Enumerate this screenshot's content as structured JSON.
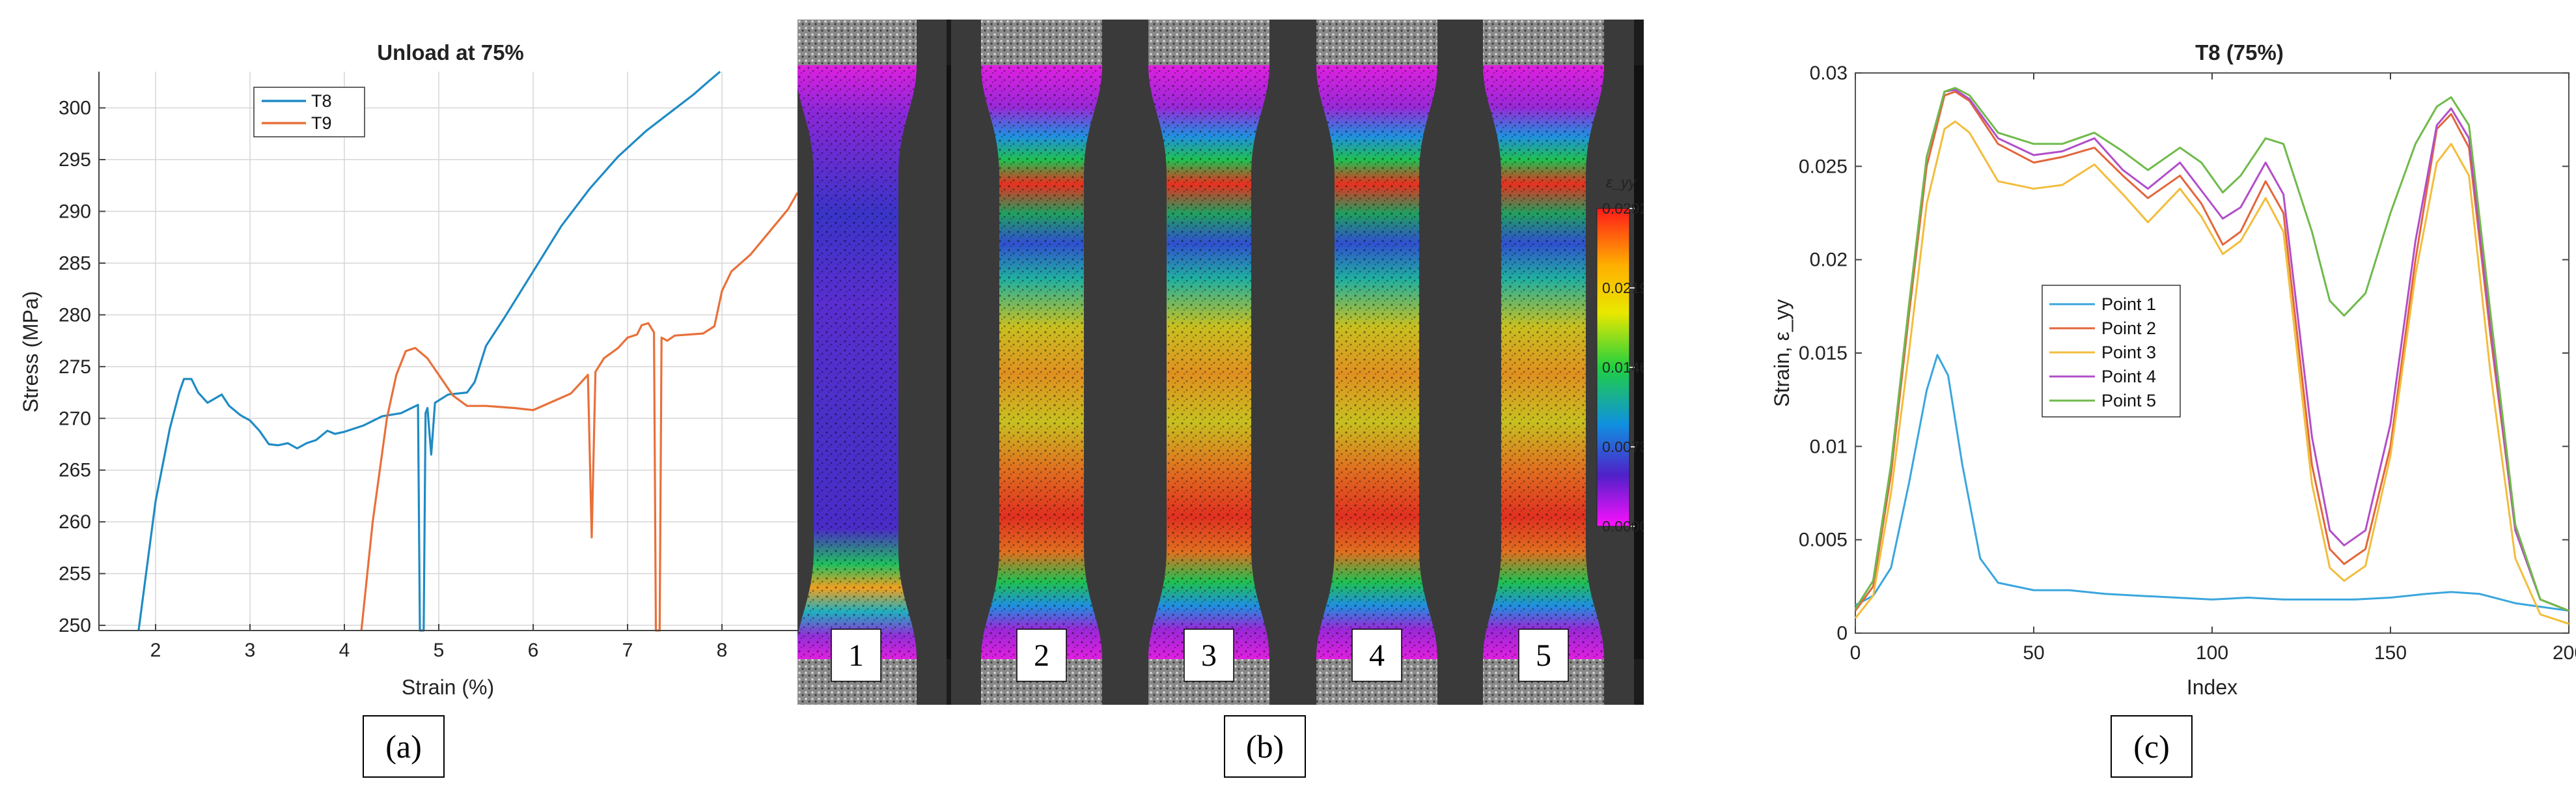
{
  "panels": {
    "a": {
      "tag": "(a)"
    },
    "b": {
      "tag": "(b)"
    },
    "c": {
      "tag": "(c)"
    }
  },
  "chart_data": [
    {
      "type": "line",
      "title": "Unload at 75%",
      "xlabel": "Strain (%)",
      "ylabel": "Stress (MPa)",
      "xlim": [
        1.4,
        8.8
      ],
      "ylim": [
        249.5,
        303.5
      ],
      "xticks": [
        2,
        3,
        4,
        5,
        6,
        7,
        8
      ],
      "yticks": [
        250,
        255,
        260,
        265,
        270,
        275,
        280,
        285,
        290,
        295,
        300
      ],
      "grid": true,
      "legend_position": "top-left",
      "series": [
        {
          "name": "T8",
          "color": "#1f8bc4",
          "points": [
            [
              1.82,
              249.5
            ],
            [
              2.0,
              262
            ],
            [
              2.15,
              269
            ],
            [
              2.25,
              272.5
            ],
            [
              2.3,
              273.8
            ],
            [
              2.38,
              273.8
            ],
            [
              2.45,
              272.5
            ],
            [
              2.55,
              271.5
            ],
            [
              2.7,
              272.3
            ],
            [
              2.78,
              271.2
            ],
            [
              2.9,
              270.3
            ],
            [
              3.0,
              269.8
            ],
            [
              3.1,
              268.8
            ],
            [
              3.2,
              267.5
            ],
            [
              3.3,
              267.4
            ],
            [
              3.4,
              267.6
            ],
            [
              3.5,
              267.1
            ],
            [
              3.6,
              267.6
            ],
            [
              3.7,
              267.9
            ],
            [
              3.82,
              268.8
            ],
            [
              3.9,
              268.5
            ],
            [
              4.0,
              268.7
            ],
            [
              4.2,
              269.3
            ],
            [
              4.4,
              270.2
            ],
            [
              4.6,
              270.5
            ],
            [
              4.78,
              271.3
            ],
            [
              4.8,
              249.5
            ],
            [
              4.84,
              249.5
            ],
            [
              4.86,
              270.5
            ],
            [
              4.88,
              271.0
            ],
            [
              4.92,
              266.5
            ],
            [
              4.96,
              271.5
            ],
            [
              5.1,
              272.3
            ],
            [
              5.3,
              272.5
            ],
            [
              5.38,
              273.5
            ],
            [
              5.5,
              277
            ],
            [
              5.7,
              279.8
            ],
            [
              6.0,
              284.2
            ],
            [
              6.3,
              288.6
            ],
            [
              6.6,
              292.2
            ],
            [
              6.9,
              295.3
            ],
            [
              7.2,
              297.8
            ],
            [
              7.5,
              299.9
            ],
            [
              7.7,
              301.3
            ],
            [
              7.85,
              302.5
            ],
            [
              7.98,
              303.5
            ]
          ]
        },
        {
          "name": "T9",
          "color": "#e8703a",
          "points": [
            [
              4.18,
              249.5
            ],
            [
              4.3,
              260
            ],
            [
              4.45,
              270
            ],
            [
              4.55,
              274.2
            ],
            [
              4.65,
              276.5
            ],
            [
              4.75,
              276.8
            ],
            [
              4.88,
              275.8
            ],
            [
              5.0,
              274.2
            ],
            [
              5.15,
              272.2
            ],
            [
              5.3,
              271.2
            ],
            [
              5.5,
              271.2
            ],
            [
              5.8,
              271.0
            ],
            [
              6.0,
              270.8
            ],
            [
              6.2,
              271.6
            ],
            [
              6.4,
              272.4
            ],
            [
              6.58,
              274.2
            ],
            [
              6.62,
              258.5
            ],
            [
              6.66,
              274.5
            ],
            [
              6.75,
              275.8
            ],
            [
              6.9,
              276.8
            ],
            [
              7.0,
              277.8
            ],
            [
              7.1,
              278.1
            ],
            [
              7.15,
              279.0
            ],
            [
              7.22,
              279.2
            ],
            [
              7.28,
              278.3
            ],
            [
              7.3,
              249.5
            ],
            [
              7.34,
              249.5
            ],
            [
              7.36,
              277.8
            ],
            [
              7.42,
              277.5
            ],
            [
              7.5,
              278.0
            ],
            [
              7.8,
              278.2
            ],
            [
              7.92,
              278.9
            ],
            [
              8.0,
              282.3
            ],
            [
              8.1,
              284.2
            ],
            [
              8.3,
              285.8
            ],
            [
              8.5,
              288.0
            ],
            [
              8.7,
              290.2
            ],
            [
              8.8,
              291.8
            ]
          ]
        }
      ]
    },
    {
      "type": "image",
      "colorbar_label": "ε_yy",
      "colorbar_ticks": [
        "0.0292",
        "0.0219",
        "0.0146",
        "0.0073",
        "0.0000"
      ],
      "specimens": [
        "1",
        "2",
        "3",
        "4",
        "5"
      ]
    },
    {
      "type": "line",
      "title": "T8 (75%)",
      "xlabel": "Index",
      "ylabel": "Strain, ε_yy",
      "xlim": [
        0,
        200
      ],
      "ylim": [
        0,
        0.03
      ],
      "xticks": [
        "0",
        "50",
        "100",
        "150",
        "200"
      ],
      "yticks": [
        "0",
        "0.005",
        "0.01",
        "0.015",
        "0.02",
        "0.025",
        "0.03"
      ],
      "grid": false,
      "legend_position": "center-left",
      "series": [
        {
          "name": "Point 1",
          "color": "#3aa6dd",
          "points": [
            [
              0,
              0.0015
            ],
            [
              5,
              0.002
            ],
            [
              10,
              0.0035
            ],
            [
              15,
              0.008
            ],
            [
              20,
              0.013
            ],
            [
              23,
              0.0149
            ],
            [
              26,
              0.0138
            ],
            [
              30,
              0.009
            ],
            [
              35,
              0.004
            ],
            [
              40,
              0.0027
            ],
            [
              50,
              0.0023
            ],
            [
              60,
              0.0023
            ],
            [
              70,
              0.0021
            ],
            [
              80,
              0.002
            ],
            [
              90,
              0.0019
            ],
            [
              100,
              0.0018
            ],
            [
              110,
              0.0019
            ],
            [
              120,
              0.0018
            ],
            [
              130,
              0.0018
            ],
            [
              140,
              0.0018
            ],
            [
              150,
              0.0019
            ],
            [
              160,
              0.0021
            ],
            [
              167,
              0.0022
            ],
            [
              175,
              0.0021
            ],
            [
              185,
              0.0016
            ],
            [
              200,
              0.0012
            ]
          ]
        },
        {
          "name": "Point 2",
          "color": "#e2663b",
          "points": [
            [
              0,
              0.0012
            ],
            [
              5,
              0.0025
            ],
            [
              10,
              0.0085
            ],
            [
              15,
              0.017
            ],
            [
              20,
              0.025
            ],
            [
              25,
              0.0288
            ],
            [
              28,
              0.029
            ],
            [
              32,
              0.0285
            ],
            [
              40,
              0.0262
            ],
            [
              50,
              0.0252
            ],
            [
              58,
              0.0255
            ],
            [
              67,
              0.026
            ],
            [
              75,
              0.0245
            ],
            [
              82,
              0.0233
            ],
            [
              91,
              0.0245
            ],
            [
              97,
              0.023
            ],
            [
              103,
              0.0208
            ],
            [
              108,
              0.0215
            ],
            [
              115,
              0.0242
            ],
            [
              120,
              0.0225
            ],
            [
              128,
              0.009
            ],
            [
              133,
              0.0045
            ],
            [
              137,
              0.0037
            ],
            [
              143,
              0.0045
            ],
            [
              150,
              0.01
            ],
            [
              157,
              0.02
            ],
            [
              163,
              0.027
            ],
            [
              167,
              0.0278
            ],
            [
              172,
              0.026
            ],
            [
              178,
              0.016
            ],
            [
              185,
              0.0055
            ],
            [
              192,
              0.0018
            ],
            [
              200,
              0.0012
            ]
          ]
        },
        {
          "name": "Point 3",
          "color": "#f2bd3b",
          "points": [
            [
              0,
              0.0008
            ],
            [
              5,
              0.002
            ],
            [
              10,
              0.0075
            ],
            [
              15,
              0.015
            ],
            [
              20,
              0.023
            ],
            [
              25,
              0.027
            ],
            [
              28,
              0.0274
            ],
            [
              32,
              0.0268
            ],
            [
              40,
              0.0242
            ],
            [
              50,
              0.0238
            ],
            [
              58,
              0.024
            ],
            [
              67,
              0.0251
            ],
            [
              75,
              0.0235
            ],
            [
              82,
              0.022
            ],
            [
              91,
              0.0238
            ],
            [
              97,
              0.0223
            ],
            [
              103,
              0.0203
            ],
            [
              108,
              0.021
            ],
            [
              115,
              0.0233
            ],
            [
              120,
              0.0215
            ],
            [
              128,
              0.008
            ],
            [
              133,
              0.0035
            ],
            [
              137,
              0.0028
            ],
            [
              143,
              0.0036
            ],
            [
              150,
              0.0095
            ],
            [
              157,
              0.0192
            ],
            [
              163,
              0.0252
            ],
            [
              167,
              0.0262
            ],
            [
              172,
              0.0245
            ],
            [
              178,
              0.014
            ],
            [
              185,
              0.004
            ],
            [
              192,
              0.001
            ],
            [
              200,
              0.0005
            ]
          ]
        },
        {
          "name": "Point 4",
          "color": "#b24ec9",
          "points": [
            [
              0,
              0.0013
            ],
            [
              5,
              0.0028
            ],
            [
              10,
              0.009
            ],
            [
              15,
              0.0175
            ],
            [
              20,
              0.0255
            ],
            [
              25,
              0.029
            ],
            [
              28,
              0.0291
            ],
            [
              32,
              0.0286
            ],
            [
              40,
              0.0265
            ],
            [
              50,
              0.0256
            ],
            [
              58,
              0.0258
            ],
            [
              67,
              0.0265
            ],
            [
              75,
              0.0248
            ],
            [
              82,
              0.0238
            ],
            [
              91,
              0.0252
            ],
            [
              97,
              0.0237
            ],
            [
              103,
              0.0222
            ],
            [
              108,
              0.0228
            ],
            [
              115,
              0.0252
            ],
            [
              120,
              0.0235
            ],
            [
              128,
              0.0105
            ],
            [
              133,
              0.0055
            ],
            [
              137,
              0.0047
            ],
            [
              143,
              0.0055
            ],
            [
              150,
              0.0112
            ],
            [
              157,
              0.021
            ],
            [
              163,
              0.0272
            ],
            [
              167,
              0.0281
            ],
            [
              172,
              0.0265
            ],
            [
              178,
              0.0165
            ],
            [
              185,
              0.0055
            ],
            [
              192,
              0.0018
            ],
            [
              200,
              0.0012
            ]
          ]
        },
        {
          "name": "Point 5",
          "color": "#6fba4a",
          "points": [
            [
              0,
              0.0013
            ],
            [
              5,
              0.0028
            ],
            [
              10,
              0.009
            ],
            [
              15,
              0.0175
            ],
            [
              20,
              0.0255
            ],
            [
              25,
              0.029
            ],
            [
              28,
              0.0292
            ],
            [
              32,
              0.0288
            ],
            [
              40,
              0.0268
            ],
            [
              50,
              0.0262
            ],
            [
              58,
              0.0262
            ],
            [
              67,
              0.0268
            ],
            [
              75,
              0.0258
            ],
            [
              82,
              0.0248
            ],
            [
              91,
              0.026
            ],
            [
              97,
              0.0252
            ],
            [
              103,
              0.0236
            ],
            [
              108,
              0.0245
            ],
            [
              115,
              0.0265
            ],
            [
              120,
              0.0262
            ],
            [
              128,
              0.0215
            ],
            [
              133,
              0.0178
            ],
            [
              137,
              0.017
            ],
            [
              143,
              0.0182
            ],
            [
              150,
              0.0225
            ],
            [
              157,
              0.0262
            ],
            [
              163,
              0.0282
            ],
            [
              167,
              0.0287
            ],
            [
              172,
              0.0272
            ],
            [
              178,
              0.0172
            ],
            [
              185,
              0.0058
            ],
            [
              192,
              0.0018
            ],
            [
              200,
              0.0012
            ]
          ]
        }
      ]
    }
  ]
}
